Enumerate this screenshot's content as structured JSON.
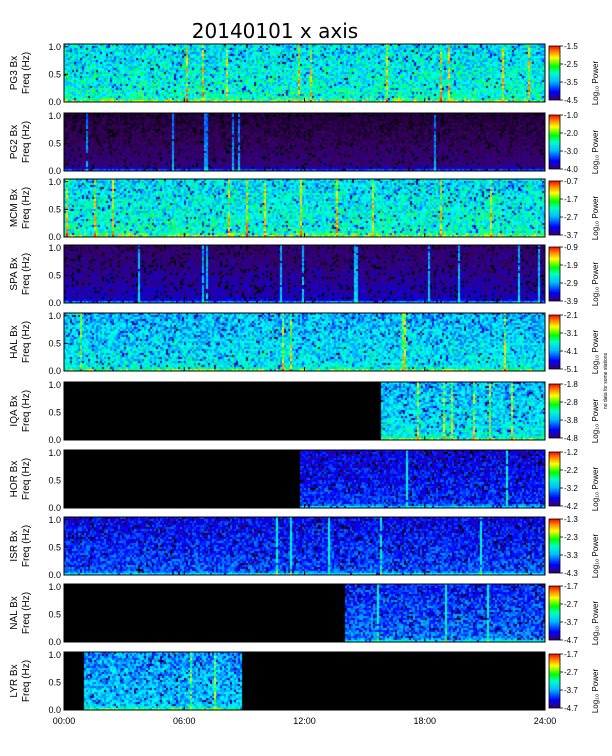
{
  "chart_data": {
    "type": "heatmap",
    "title": "20140101  x axis",
    "x_ticks": [
      "00:00",
      "06:00",
      "12:00",
      "18:00",
      "24:00"
    ],
    "x_range_hours": [
      0,
      24
    ],
    "y_ticks": [
      "0.0",
      "0.5",
      "1.0"
    ],
    "y_range_hz": [
      0,
      1.05
    ],
    "colorbar_label": "Log₁₀ Power",
    "colormap": [
      "#000000",
      "#3b0066",
      "#0000ff",
      "#00a0ff",
      "#00ffff",
      "#00ff60",
      "#ffff00",
      "#ff8000",
      "#ff0000"
    ],
    "panels": [
      {
        "station": "PG3 Bx",
        "ylabel": "Freq (Hz)",
        "cb_ticks": [
          "-1.5",
          "-2.5",
          "-3.5",
          "-4.5"
        ],
        "data_start_h": 0,
        "data_end_h": 24,
        "level": 0.55
      },
      {
        "station": "PG2 Bx",
        "ylabel": "Freq (Hz)",
        "cb_ticks": [
          "-1.0",
          "-2.0",
          "-3.0",
          "-4.0"
        ],
        "data_start_h": 0,
        "data_end_h": 24,
        "level": 0.15
      },
      {
        "station": "MCM Bx",
        "ylabel": "Freq (Hz)",
        "cb_ticks": [
          "-0.7",
          "-1.7",
          "-2.7",
          "-3.7"
        ],
        "data_start_h": 0,
        "data_end_h": 24,
        "level": 0.55
      },
      {
        "station": "SPA Bx",
        "ylabel": "Freq (Hz)",
        "cb_ticks": [
          "-0.9",
          "-1.9",
          "-2.9",
          "-3.9"
        ],
        "data_start_h": 0,
        "data_end_h": 24,
        "level": 0.2
      },
      {
        "station": "HAL Bx",
        "ylabel": "Freq (Hz)",
        "cb_ticks": [
          "-2.1",
          "-3.1",
          "-4.1",
          "-5.1"
        ],
        "data_start_h": 0,
        "data_end_h": 24,
        "level": 0.5,
        "cb_note": "no data for some stations"
      },
      {
        "station": "IQA Bx",
        "ylabel": "Freq (Hz)",
        "cb_ticks": [
          "-1.8",
          "-2.8",
          "-3.8",
          "-4.8"
        ],
        "data_start_h": 15.8,
        "data_end_h": 24,
        "level": 0.5
      },
      {
        "station": "HOR Bx",
        "ylabel": "Freq (Hz)",
        "cb_ticks": [
          "-1.2",
          "-2.2",
          "-3.2",
          "-4.2"
        ],
        "data_start_h": 11.8,
        "data_end_h": 24,
        "level": 0.3
      },
      {
        "station": "ISR Bx",
        "ylabel": "Freq (Hz)",
        "cb_ticks": [
          "-1.3",
          "-2.3",
          "-3.3",
          "-4.3"
        ],
        "data_start_h": 0,
        "data_end_h": 24,
        "level": 0.32
      },
      {
        "station": "NAL Bx",
        "ylabel": "Freq (Hz)",
        "cb_ticks": [
          "-1.7",
          "-2.7",
          "-3.7",
          "-4.7"
        ],
        "data_start_h": 14,
        "data_end_h": 24,
        "level": 0.35
      },
      {
        "station": "LYR Bx",
        "ylabel": "Freq (Hz)",
        "cb_ticks": [
          "-1.7",
          "-2.7",
          "-3.7",
          "-4.7"
        ],
        "data_start_h": 1,
        "data_end_h": 8.9,
        "level": 0.45
      }
    ]
  }
}
